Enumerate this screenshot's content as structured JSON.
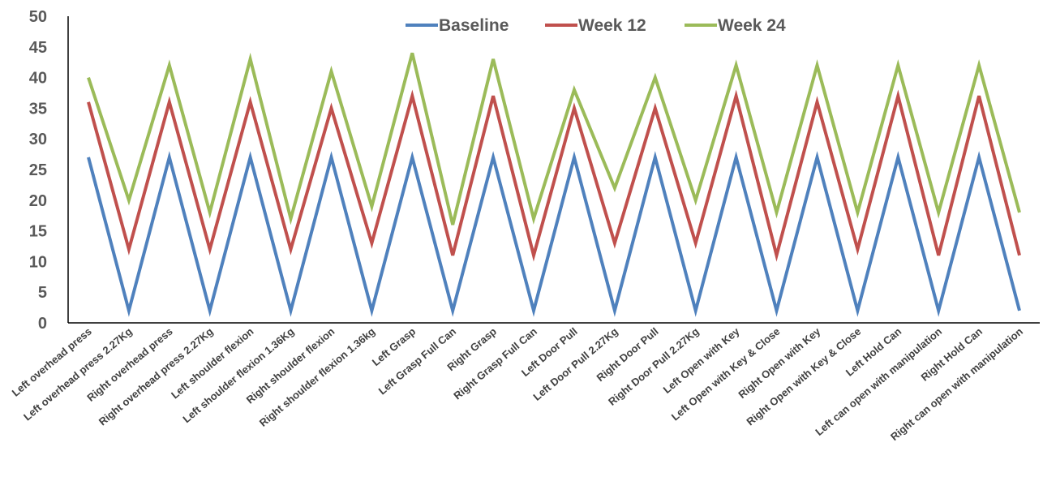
{
  "chart_data": {
    "type": "line",
    "title": "",
    "xlabel": "",
    "ylabel": "",
    "ylim": [
      0,
      50
    ],
    "yticks": [
      0,
      5,
      10,
      15,
      20,
      25,
      30,
      35,
      40,
      45,
      50
    ],
    "grid": false,
    "legend_position": "top",
    "categories": [
      "Left overhead press",
      "Left overhead press 2.27Kg",
      "Right overhead press",
      "Right overhead press 2.27Kg",
      "Left shoulder flexion",
      "Left shoulder flexion 1.36Kg",
      "Right shoulder flexion",
      "Right shoulder flexion 1.36kg",
      "Left Grasp",
      "Left Grasp Full Can",
      "Right Grasp",
      "Right Grasp Full Can",
      "Left Door Pull",
      "Left Door Pull 2.27Kg",
      "Right Door Pull",
      "Right Door Pull 2.27Kg",
      "Left Open with Key",
      "Left Open with Key & Close",
      "Right Open with Key",
      "Right Open with Key & Close",
      "Left Hold Can",
      "Left can open with manipulation",
      "Right Hold Can",
      "Right can open with manipulation"
    ],
    "series": [
      {
        "name": "Baseline",
        "color": "#4F81BD",
        "values": [
          27,
          2,
          27,
          2,
          27,
          2,
          27,
          2,
          27,
          2,
          27,
          2,
          27,
          2,
          27,
          2,
          27,
          2,
          27,
          2,
          27,
          2,
          27,
          2
        ]
      },
      {
        "name": "Week 12",
        "color": "#C0504D",
        "values": [
          36,
          12,
          36,
          12,
          36,
          12,
          35,
          13,
          37,
          11,
          37,
          11,
          35,
          13,
          35,
          13,
          37,
          11,
          36,
          12,
          37,
          11,
          37,
          11
        ]
      },
      {
        "name": "Week 24",
        "color": "#9BBB59",
        "values": [
          40,
          20,
          42,
          18,
          43,
          17,
          41,
          19,
          44,
          16,
          43,
          17,
          38,
          22,
          40,
          20,
          42,
          18,
          42,
          18,
          42,
          18,
          42,
          18
        ]
      }
    ]
  }
}
